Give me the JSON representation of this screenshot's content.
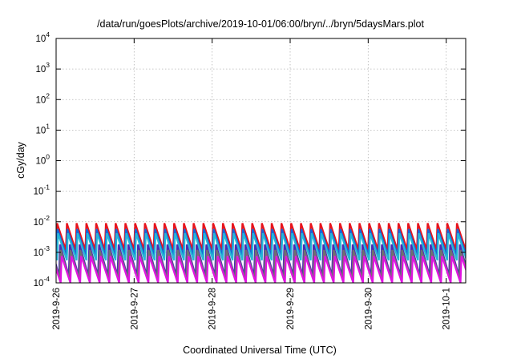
{
  "chart_data": {
    "type": "line",
    "title": "/data/run/goesPlots/archive/2019-10-01/06:00/bryn/../bryn/5daysMars.plot",
    "xlabel": "Coordinated Universal Time (UTC)",
    "ylabel": "cGy/day",
    "y_scale": "log",
    "ylim": [
      0.0001,
      10000
    ],
    "y_ticks": [
      {
        "base": "10",
        "exp": "4"
      },
      {
        "base": "10",
        "exp": "3"
      },
      {
        "base": "10",
        "exp": "2"
      },
      {
        "base": "10",
        "exp": "1"
      },
      {
        "base": "10",
        "exp": "0"
      },
      {
        "base": "10",
        "exp": "-1"
      },
      {
        "base": "10",
        "exp": "-2"
      },
      {
        "base": "10",
        "exp": "-3"
      },
      {
        "base": "10",
        "exp": "-4"
      }
    ],
    "x_ticks": [
      "2019-9-26",
      "2019-9-27",
      "2019-9-28",
      "2019-9-29",
      "2019-9-30",
      "2019-10-1"
    ],
    "xlim": [
      "2019-9-26 00:00",
      "2019-10-1 06:00"
    ],
    "grid": true,
    "sawtooth_period_hours": 3,
    "series": [
      {
        "color": "#e8141c",
        "peak": 0.009,
        "trough": 0.0012,
        "phase_hours": 0.0
      },
      {
        "color": "#1565d8",
        "peak": 0.0058,
        "trough": 0.0008,
        "phase_hours": 0.15
      },
      {
        "color": "#27b7d6",
        "peak": 0.0042,
        "trough": 0.00055,
        "phase_hours": 0.3
      },
      {
        "color": "#4b2bb5",
        "peak": 0.0018,
        "trough": 0.00017,
        "phase_hours": 0.9
      },
      {
        "color": "#707070",
        "peak": 0.0012,
        "trough": 0.00013,
        "phase_hours": 1.1
      },
      {
        "color": "#e014e0",
        "peak": 0.00075,
        "trough": 0.0001,
        "phase_hours": 1.4
      }
    ]
  }
}
